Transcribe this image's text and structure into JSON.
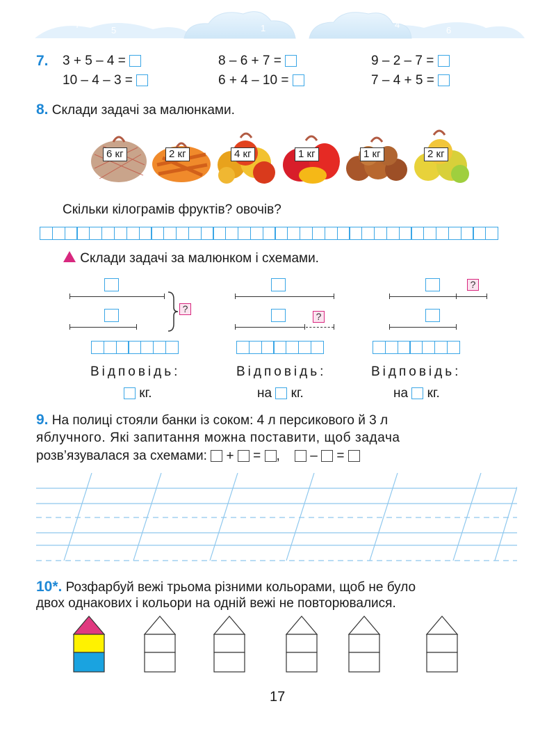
{
  "task7": {
    "number": "7.",
    "row1": [
      "3 + 5 – 4 =",
      "8 – 6 + 7 =",
      "9 – 2 – 7 ="
    ],
    "row2": [
      "10 – 4 – 3 =",
      "6 + 4 – 10 =",
      "7 – 4 + 5 ="
    ]
  },
  "task8": {
    "number": "8.",
    "text": "Склади задачі за малюнками.",
    "bags": [
      {
        "label": "6 кг",
        "icon": "potato-bag-icon"
      },
      {
        "label": "2 кг",
        "icon": "carrot-bag-icon"
      },
      {
        "label": "4 кг",
        "icon": "apple-bag-icon"
      },
      {
        "label": "1 кг",
        "icon": "pepper-bag-icon"
      },
      {
        "label": "1 кг",
        "icon": "onion-bag-icon"
      },
      {
        "label": "2 кг",
        "icon": "pear-bag-icon"
      }
    ],
    "question": "Скільки кілограмів фруктів? овочів?",
    "sub_text": "Склади задачі за малюнком і схемами.",
    "q_mark": "?",
    "answer_label": "Відповідь:",
    "answers": [
      {
        "prefix": "",
        "unit": "кг."
      },
      {
        "prefix": "на",
        "unit": "кг."
      },
      {
        "prefix": "на",
        "unit": "кг."
      }
    ]
  },
  "task9": {
    "number": "9.",
    "line1": "На полиці стояли банки із соком: 4 л персикового й 3 л",
    "line2": "яблучного. Які запитання можна поставити, щоб задача",
    "line3": "розв’язувалася за схемами:",
    "s1_plus": "+",
    "s1_eq": "=",
    "comma": ",",
    "s2_minus": "–",
    "s2_eq": "="
  },
  "task10": {
    "number": "10*.",
    "line1": "Розфарбуй вежі трьома різними кольорами, щоб не було",
    "line2": "двох однакових і кольори на одній вежі не повторювалися.",
    "colors": {
      "roof": "#e0397f",
      "middle": "#fff200",
      "base": "#1aa3e0"
    }
  },
  "page_number": "17",
  "colors": {
    "accent": "#1e88d6",
    "box_border": "#3aa6e6",
    "pink": "#d8287f"
  }
}
